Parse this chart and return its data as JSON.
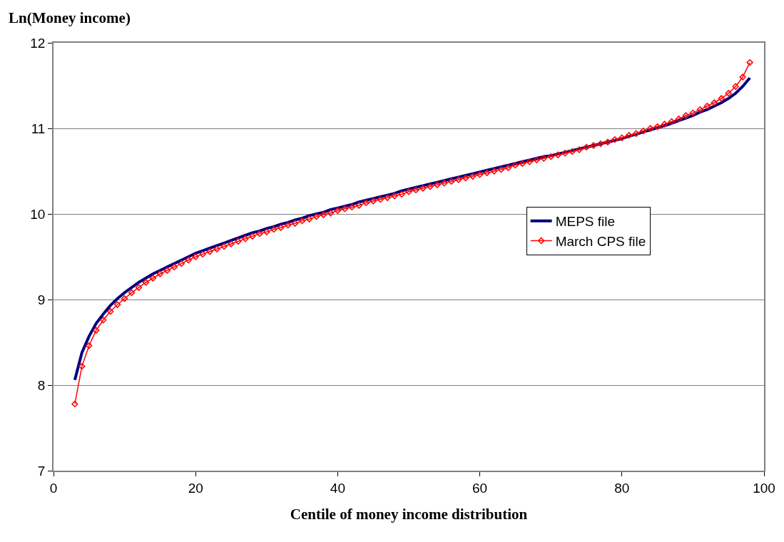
{
  "chart_data": {
    "type": "line",
    "xlabel": "Centile of money income distribution",
    "ylabel": "Ln(Money income)",
    "x": [
      3,
      4,
      5,
      6,
      7,
      8,
      9,
      10,
      11,
      12,
      13,
      14,
      15,
      16,
      17,
      18,
      19,
      20,
      21,
      22,
      23,
      24,
      25,
      26,
      27,
      28,
      29,
      30,
      31,
      32,
      33,
      34,
      35,
      36,
      37,
      38,
      39,
      40,
      41,
      42,
      43,
      44,
      45,
      46,
      47,
      48,
      49,
      50,
      51,
      52,
      53,
      54,
      55,
      56,
      57,
      58,
      59,
      60,
      61,
      62,
      63,
      64,
      65,
      66,
      67,
      68,
      69,
      70,
      71,
      72,
      73,
      74,
      75,
      76,
      77,
      78,
      79,
      80,
      81,
      82,
      83,
      84,
      85,
      86,
      87,
      88,
      89,
      90,
      91,
      92,
      93,
      94,
      95,
      96,
      97,
      98
    ],
    "series": [
      {
        "name": "MEPS file",
        "color": "#000080",
        "marker": "none",
        "values": [
          8.06,
          8.38,
          8.57,
          8.72,
          8.83,
          8.93,
          9.01,
          9.08,
          9.14,
          9.2,
          9.25,
          9.3,
          9.34,
          9.38,
          9.42,
          9.46,
          9.5,
          9.54,
          9.57,
          9.6,
          9.63,
          9.66,
          9.69,
          9.72,
          9.75,
          9.78,
          9.8,
          9.83,
          9.85,
          9.88,
          9.9,
          9.93,
          9.95,
          9.98,
          10.0,
          10.02,
          10.05,
          10.07,
          10.09,
          10.11,
          10.14,
          10.16,
          10.18,
          10.2,
          10.22,
          10.24,
          10.27,
          10.29,
          10.31,
          10.33,
          10.35,
          10.37,
          10.39,
          10.41,
          10.43,
          10.45,
          10.47,
          10.49,
          10.51,
          10.53,
          10.55,
          10.57,
          10.59,
          10.61,
          10.63,
          10.65,
          10.67,
          10.68,
          10.7,
          10.72,
          10.74,
          10.76,
          10.78,
          10.8,
          10.82,
          10.84,
          10.86,
          10.88,
          10.91,
          10.93,
          10.96,
          10.98,
          11.01,
          11.03,
          11.06,
          11.09,
          11.12,
          11.15,
          11.19,
          11.22,
          11.26,
          11.3,
          11.35,
          11.41,
          11.49,
          11.59
        ]
      },
      {
        "name": "March CPS file",
        "color": "#ff0000",
        "marker": "diamond",
        "values": [
          7.78,
          8.22,
          8.46,
          8.64,
          8.76,
          8.86,
          8.94,
          9.01,
          9.08,
          9.14,
          9.2,
          9.25,
          9.3,
          9.34,
          9.38,
          9.42,
          9.46,
          9.5,
          9.53,
          9.56,
          9.59,
          9.62,
          9.65,
          9.68,
          9.71,
          9.74,
          9.77,
          9.79,
          9.82,
          9.84,
          9.87,
          9.89,
          9.92,
          9.94,
          9.97,
          9.99,
          10.01,
          10.04,
          10.06,
          10.08,
          10.1,
          10.13,
          10.15,
          10.17,
          10.19,
          10.21,
          10.23,
          10.26,
          10.28,
          10.3,
          10.32,
          10.34,
          10.36,
          10.38,
          10.4,
          10.42,
          10.44,
          10.46,
          10.48,
          10.5,
          10.52,
          10.54,
          10.57,
          10.59,
          10.61,
          10.63,
          10.65,
          10.67,
          10.69,
          10.71,
          10.73,
          10.75,
          10.78,
          10.8,
          10.82,
          10.84,
          10.87,
          10.89,
          10.92,
          10.94,
          10.97,
          11.0,
          11.02,
          11.05,
          11.08,
          11.11,
          11.15,
          11.18,
          11.22,
          11.26,
          11.3,
          11.35,
          11.41,
          11.49,
          11.6,
          11.77
        ]
      }
    ],
    "xlim": [
      0,
      100
    ],
    "xticks": [
      0,
      20,
      40,
      60,
      80,
      100
    ],
    "ylim": [
      7,
      12
    ],
    "yticks": [
      7,
      8,
      9,
      10,
      11,
      12
    ],
    "grid": "y",
    "legend": "right",
    "line_style": "solid"
  }
}
